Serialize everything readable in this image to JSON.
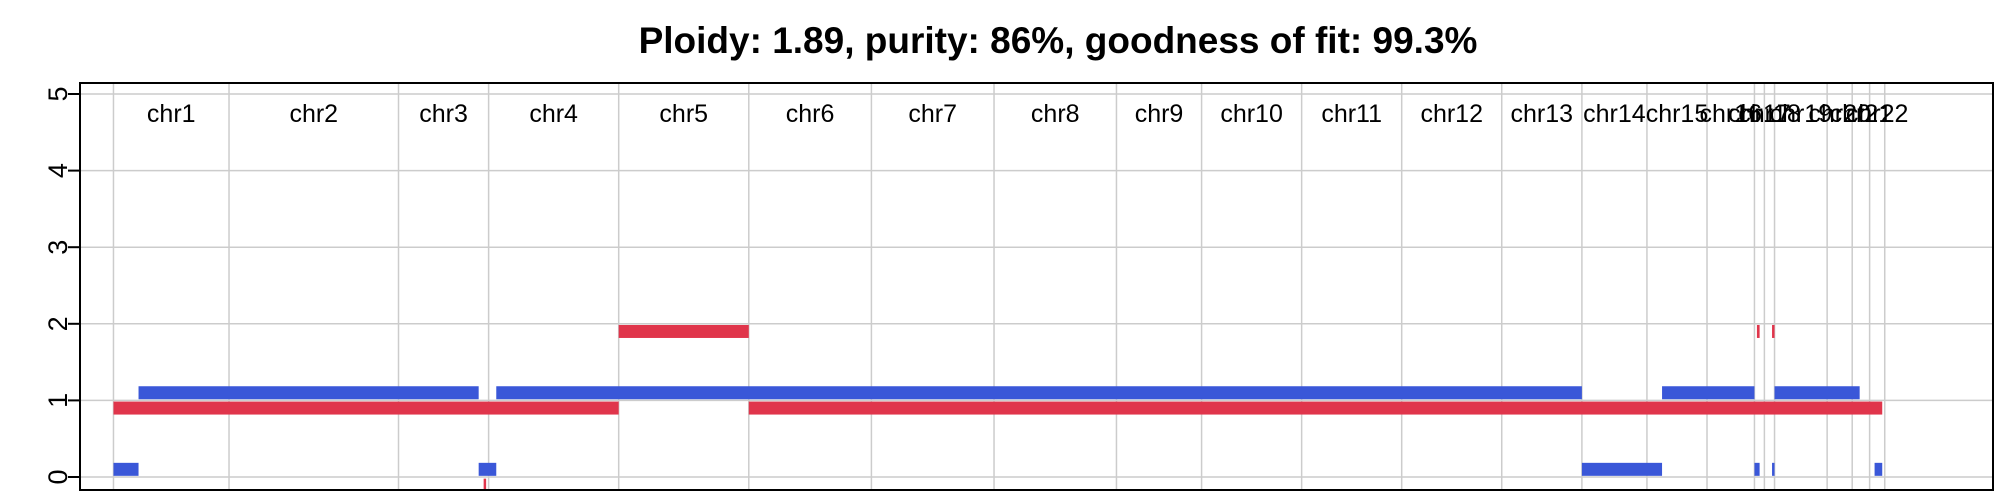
{
  "chart_data": {
    "type": "segments",
    "title": "Ploidy: 1.89, purity: 86%, goodness of fit: 99.3%",
    "xlabel": "",
    "ylabel": "",
    "ylim": [
      0,
      5
    ],
    "yticks": [
      "0",
      "1",
      "2",
      "3",
      "4",
      "5"
    ],
    "xlim": [
      0,
      100
    ],
    "grid": true,
    "colors": {
      "major": "#3a57d8",
      "minor": "#e0354b",
      "grid": "#cccccc",
      "axis": "#000000"
    },
    "chromosomes": [
      {
        "label": "chr1",
        "start": 1.75,
        "end": 7.79
      },
      {
        "label": "chr2",
        "start": 7.79,
        "end": 16.65
      },
      {
        "label": "chr3",
        "start": 16.65,
        "end": 21.36
      },
      {
        "label": "chr4",
        "start": 21.36,
        "end": 28.16
      },
      {
        "label": "chr5",
        "start": 28.16,
        "end": 34.96
      },
      {
        "label": "chr6",
        "start": 34.96,
        "end": 41.37
      },
      {
        "label": "chr7",
        "start": 41.37,
        "end": 47.78
      },
      {
        "label": "chr8",
        "start": 47.78,
        "end": 54.18
      },
      {
        "label": "chr9",
        "start": 54.18,
        "end": 58.63
      },
      {
        "label": "chr10",
        "start": 58.63,
        "end": 63.86
      },
      {
        "label": "chr11",
        "start": 63.86,
        "end": 69.09
      },
      {
        "label": "chr12",
        "start": 69.09,
        "end": 74.32
      },
      {
        "label": "chr13",
        "start": 74.32,
        "end": 78.51
      },
      {
        "label": "chr14",
        "start": 78.51,
        "end": 81.91
      },
      {
        "label": "chr15",
        "start": 81.91,
        "end": 85.05
      },
      {
        "label": "chr16",
        "start": 85.05,
        "end": 87.53
      },
      {
        "label": "chr17",
        "start": 87.53,
        "end": 88.05
      },
      {
        "label": "chr18",
        "start": 88.05,
        "end": 88.58
      },
      {
        "label": "chr19",
        "start": 88.58,
        "end": 91.33
      },
      {
        "label": "chr20",
        "start": 91.33,
        "end": 92.64
      },
      {
        "label": "chr21",
        "start": 92.64,
        "end": 93.55
      },
      {
        "label": "chr22",
        "start": 93.55,
        "end": 94.34
      }
    ],
    "series": [
      {
        "color": "#3a57d8",
        "segments": [
          {
            "start": 1.75,
            "end": 3.06,
            "value": 0.1
          },
          {
            "start": 3.06,
            "end": 20.84,
            "value": 1.1
          },
          {
            "start": 20.84,
            "end": 21.76,
            "value": 0.1
          },
          {
            "start": 21.76,
            "end": 78.51,
            "value": 1.1
          },
          {
            "start": 78.51,
            "end": 82.7,
            "value": 0.1
          },
          {
            "start": 82.7,
            "end": 87.53,
            "value": 1.1
          },
          {
            "start": 87.53,
            "end": 87.8,
            "value": 0.1
          },
          {
            "start": 88.45,
            "end": 88.58,
            "value": 0.1
          },
          {
            "start": 88.58,
            "end": 93.03,
            "value": 1.1
          },
          {
            "start": 93.81,
            "end": 94.21,
            "value": 0.1
          }
        ]
      },
      {
        "color": "#e0354b",
        "segments": [
          {
            "start": 1.75,
            "end": 28.16,
            "value": 0.9
          },
          {
            "start": 28.16,
            "end": 34.96,
            "value": 1.9
          },
          {
            "start": 34.96,
            "end": 94.21,
            "value": 0.9
          },
          {
            "start": 87.66,
            "end": 87.8,
            "value": 1.9
          },
          {
            "start": 88.45,
            "end": 88.58,
            "value": 1.9
          },
          {
            "start": 21.1,
            "end": 21.23,
            "value": -0.1
          }
        ]
      }
    ]
  }
}
